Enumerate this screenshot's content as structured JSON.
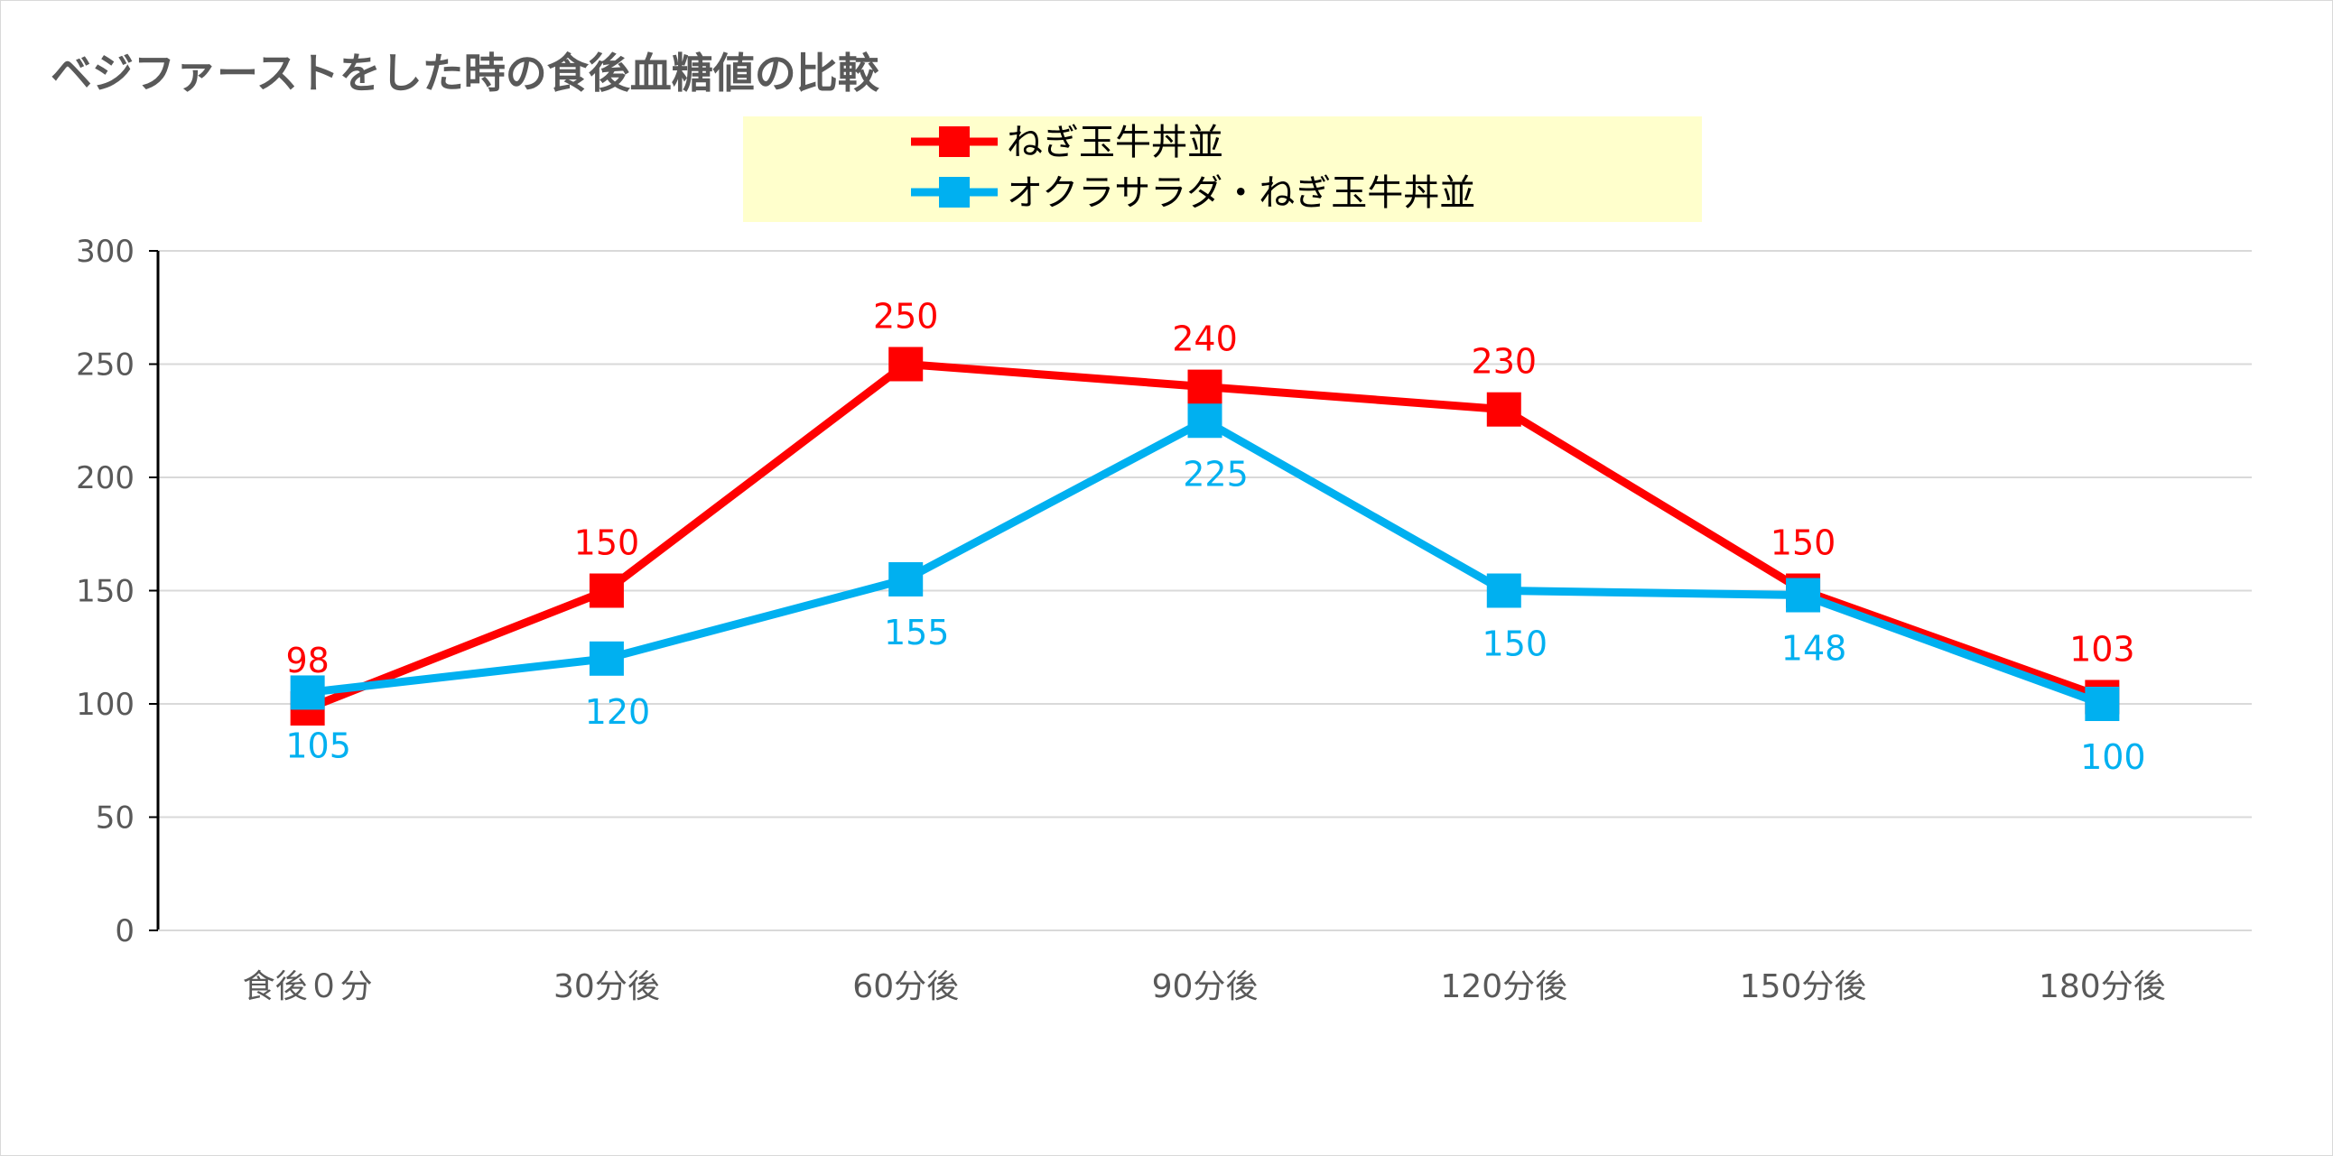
{
  "chart_data": {
    "type": "line",
    "title": "ベジファーストをした時の食後血糖値の比較",
    "xlabel": "",
    "ylabel": "",
    "categories": [
      "食後０分",
      "30分後",
      "60分後",
      "90分後",
      "120分後",
      "150分後",
      "180分後"
    ],
    "ylim": [
      0,
      300
    ],
    "yticks": [
      "0",
      "50",
      "100",
      "150",
      "200",
      "250",
      "300"
    ],
    "grid": true,
    "legend_position": "top",
    "series": [
      {
        "name": "ねぎ玉牛丼並",
        "color": "#ff0000",
        "values": [
          98,
          150,
          250,
          240,
          230,
          150,
          103
        ],
        "labels": [
          "98",
          "150",
          "250",
          "240",
          "230",
          "150",
          "103"
        ],
        "label_position": "above"
      },
      {
        "name": "オクラサラダ・ねぎ玉牛丼並",
        "color": "#00b0f0",
        "values": [
          105,
          120,
          155,
          225,
          150,
          148,
          100
        ],
        "labels": [
          "105",
          "120",
          "155",
          "225",
          "150",
          "148",
          "100"
        ],
        "label_position": "below"
      }
    ],
    "legend_background": "#ffffcc"
  }
}
